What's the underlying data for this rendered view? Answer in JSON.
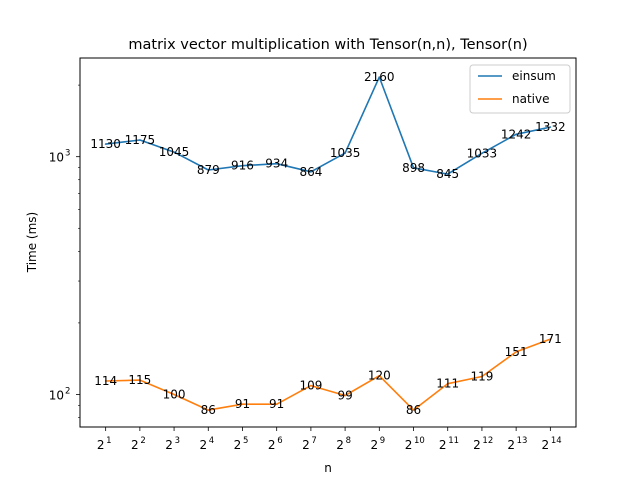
{
  "chart_data": {
    "type": "line",
    "title": "matrix vector multiplication with Tensor(n,n), Tensor(n)",
    "xlabel": "n",
    "ylabel": "Time (ms)",
    "y_scale": "log",
    "ylim": [
      73,
      2600
    ],
    "yticks": [
      {
        "value": 1000,
        "base": "10",
        "exp": "3"
      },
      {
        "value": 100,
        "base": "10",
        "exp": "2"
      }
    ],
    "categories": [
      {
        "base": "2",
        "exp": "1"
      },
      {
        "base": "2",
        "exp": "2"
      },
      {
        "base": "2",
        "exp": "3"
      },
      {
        "base": "2",
        "exp": "4"
      },
      {
        "base": "2",
        "exp": "5"
      },
      {
        "base": "2",
        "exp": "6"
      },
      {
        "base": "2",
        "exp": "7"
      },
      {
        "base": "2",
        "exp": "8"
      },
      {
        "base": "2",
        "exp": "9"
      },
      {
        "base": "2",
        "exp": "10"
      },
      {
        "base": "2",
        "exp": "11"
      },
      {
        "base": "2",
        "exp": "12"
      },
      {
        "base": "2",
        "exp": "13"
      },
      {
        "base": "2",
        "exp": "14"
      }
    ],
    "series": [
      {
        "name": "einsum",
        "color": "#1f77b4",
        "values": [
          1130,
          1175,
          1045,
          879,
          916,
          934,
          864,
          1035,
          2160,
          898,
          845,
          1033,
          1242,
          1332
        ]
      },
      {
        "name": "native",
        "color": "#ff7f0e",
        "values": [
          114,
          115,
          100,
          86,
          91,
          91,
          109,
          99,
          120,
          86,
          111,
          119,
          151,
          171
        ]
      }
    ],
    "legend_position": "top-right",
    "grid": false
  }
}
